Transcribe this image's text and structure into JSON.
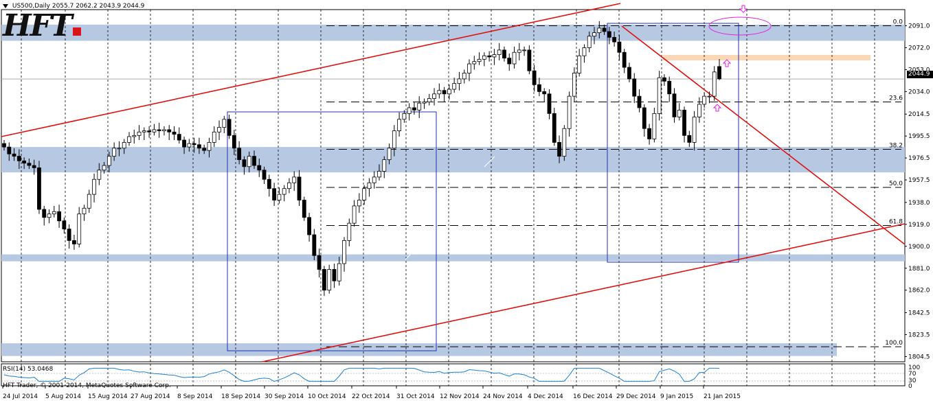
{
  "header": {
    "symbol_line": "US500,Daily  2055.7 2062.2 2043.9 2044.9"
  },
  "logo": {
    "text": "HFT"
  },
  "price_axis": {
    "labels": [
      "2091.0",
      "2072.0",
      "2053.0",
      "2034.0",
      "2014.5",
      "1995.5",
      "1976.5",
      "1957.5",
      "1938.0",
      "1919.0",
      "1900.0",
      "1881.0",
      "1862.0",
      "1842.5",
      "1823.5",
      "1804.5"
    ],
    "current_price": "2044.9"
  },
  "fib_levels": {
    "labels": [
      "0.0",
      "23.6",
      "38.2",
      "50.0",
      "61.8",
      "100.0"
    ]
  },
  "rsi": {
    "label": "RSI(14) 53.0468",
    "axis_labels": [
      "70",
      "30"
    ],
    "axis_label_top": "100",
    "axis_label_bottom": "0"
  },
  "copyright": "HFT Trader, © 2001-2014, MetaQuotes Software Corp.",
  "time_axis": {
    "labels": [
      "24 Jul 2014",
      "5 Aug 2014",
      "15 Aug 2014",
      "27 Aug 2014",
      "8 Sep 2014",
      "18 Sep 2014",
      "30 Sep 2014",
      "10 Oct 2014",
      "22 Oct 2014",
      "31 Oct 2014",
      "12 Nov 2014",
      "24 Nov 2014",
      "4 Dec 2014",
      "16 Dec 2014",
      "29 Dec 2014",
      "9 Jan 2015",
      "21 Jan 2015"
    ]
  },
  "colors": {
    "zone": "#b7c9e2",
    "trendline": "#e01010",
    "box": "#1f2fb0",
    "resistance": "#fad7b6",
    "annotation": "#e020e0",
    "rsi_line": "#1e7fd0"
  },
  "chart_data": {
    "type": "candlestick",
    "instrument": "US500",
    "timeframe": "Daily",
    "last_bar": {
      "open": 2055.7,
      "high": 2062.2,
      "low": 2043.9,
      "close": 2044.9
    },
    "ylim": [
      1800,
      2105
    ],
    "support_zones": [
      [
        2078,
        2092
      ],
      [
        1964,
        1986
      ],
      [
        1887,
        1893
      ],
      [
        1805,
        1816
      ]
    ],
    "fibonacci": [
      {
        "level": "0.0",
        "price": 2091.0
      },
      {
        "level": "23.6",
        "price": 2025.0
      },
      {
        "level": "38.2",
        "price": 1984.0
      },
      {
        "level": "50.0",
        "price": 1951.0
      },
      {
        "level": "61.8",
        "price": 1918.0
      },
      {
        "level": "100.0",
        "price": 1813.0
      }
    ],
    "closes": [
      1986,
      1980,
      1978,
      1974,
      1972,
      1970,
      1968,
      1932,
      1925,
      1928,
      1930,
      1922,
      1915,
      1905,
      1902,
      1928,
      1933,
      1945,
      1958,
      1966,
      1970,
      1978,
      1985,
      1985,
      1990,
      1995,
      1996,
      1999,
      2000,
      1999,
      2001,
      2000,
      2001,
      1999,
      1997,
      1992,
      1986,
      1989,
      1988,
      1985,
      1983,
      1990,
      1999,
      2003,
      2010,
      1996,
      1985,
      1975,
      1969,
      1978,
      1970,
      1966,
      1958,
      1950,
      1940,
      1945,
      1950,
      1955,
      1960,
      1940,
      1925,
      1910,
      1892,
      1880,
      1862,
      1880,
      1870,
      1885,
      1905,
      1920,
      1935,
      1940,
      1950,
      1955,
      1960,
      1965,
      1975,
      1985,
      2000,
      2010,
      2015,
      2020,
      2018,
      2024,
      2025,
      2028,
      2032,
      2035,
      2032,
      2036,
      2041,
      2045,
      2050,
      2058,
      2060,
      2062,
      2065,
      2064,
      2066,
      2070,
      2063,
      2058,
      2068,
      2070,
      2070,
      2052,
      2040,
      2034,
      2032,
      2015,
      1990,
      1978,
      2002,
      2030,
      2050,
      2065,
      2072,
      2082,
      2085,
      2089,
      2086,
      2081,
      2077,
      2068,
      2055,
      2045,
      2030,
      2020,
      2002,
      1993,
      2015,
      2046,
      2043,
      2032,
      2012,
      2018,
      1996,
      1990,
      2012,
      2023,
      2030,
      2030,
      2051,
      2045
    ]
  }
}
